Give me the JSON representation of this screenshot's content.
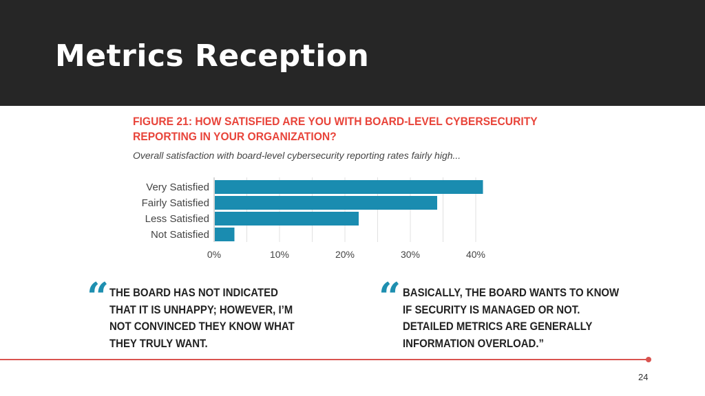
{
  "slide": {
    "title": "Metrics Reception",
    "page_number": "24"
  },
  "figure": {
    "title": "FIGURE 21: HOW SATISFIED ARE YOU WITH BOARD-LEVEL CYBERSECURITY REPORTING IN YOUR ORGANIZATION?",
    "subtitle": "Overall satisfaction with board-level cybersecurity reporting rates fairly high..."
  },
  "chart_data": {
    "type": "bar",
    "orientation": "horizontal",
    "categories": [
      "Very Satisfied",
      "Fairly Satisfied",
      "Less Satisfied",
      "Not Satisfied"
    ],
    "values": [
      41,
      34,
      22,
      3
    ],
    "xlim": [
      0,
      40
    ],
    "xticks": [
      "0%",
      "10%",
      "20%",
      "30%",
      "40%"
    ],
    "grid": true,
    "bar_color": "#1a8cb0",
    "grid_color": "#e0e0e0"
  },
  "quotes": [
    {
      "mark": "“",
      "text": "THE BOARD HAS NOT INDICATED THAT IT IS UNHAPPY; HOWEVER, I’M NOT CONVINCED THEY KNOW WHAT THEY TRULY WANT."
    },
    {
      "mark": "“",
      "text": "BASICALLY, THE BOARD WANTS TO KNOW IF SECURITY IS MANAGED OR NOT. DETAILED METRICS ARE GENERALLY INFORMATION OVERLOAD.”"
    }
  ],
  "colors": {
    "header_bg": "#262626",
    "accent_red": "#e8443a",
    "quote_blue": "#1e8fb0",
    "divider": "#d9534f"
  }
}
